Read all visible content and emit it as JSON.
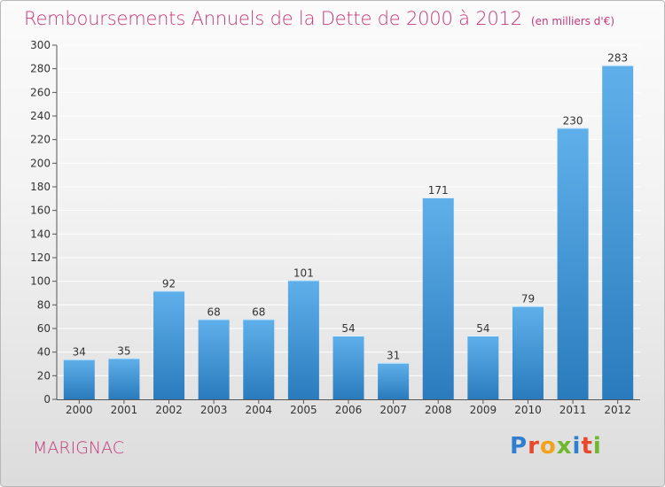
{
  "title": "Remboursements Annuels de la Dette de 2000 à 2012",
  "unit": "(en milliers d'€)",
  "commune": "MARIGNAC",
  "logo": {
    "text": "Proxiti",
    "letters": [
      {
        "char": "P",
        "color": "#2f7fd0"
      },
      {
        "char": "r",
        "color": "#e8492a"
      },
      {
        "char": "o",
        "color": "#f3a21c"
      },
      {
        "char": "x",
        "color": "#6fb82c"
      },
      {
        "char": "i",
        "color": "#2f7fd0"
      },
      {
        "char": "t",
        "color": "#e8492a"
      },
      {
        "char": "i",
        "color": "#6fb82c"
      }
    ]
  },
  "colors": {
    "title": "#c4387a",
    "bar_top": "#5fb0ea",
    "bar_bottom": "#2a7bbd",
    "grid": "#ffffff"
  },
  "chart_data": {
    "type": "bar",
    "categories": [
      "2000",
      "2001",
      "2002",
      "2003",
      "2004",
      "2005",
      "2006",
      "2007",
      "2008",
      "2009",
      "2010",
      "2011",
      "2012"
    ],
    "values": [
      34,
      35,
      92,
      68,
      68,
      101,
      54,
      31,
      171,
      54,
      79,
      230,
      283
    ],
    "ylim": [
      0,
      300
    ],
    "yticks": [
      0,
      20,
      40,
      60,
      80,
      100,
      120,
      140,
      160,
      180,
      200,
      220,
      240,
      260,
      280,
      300
    ],
    "grid": true
  }
}
